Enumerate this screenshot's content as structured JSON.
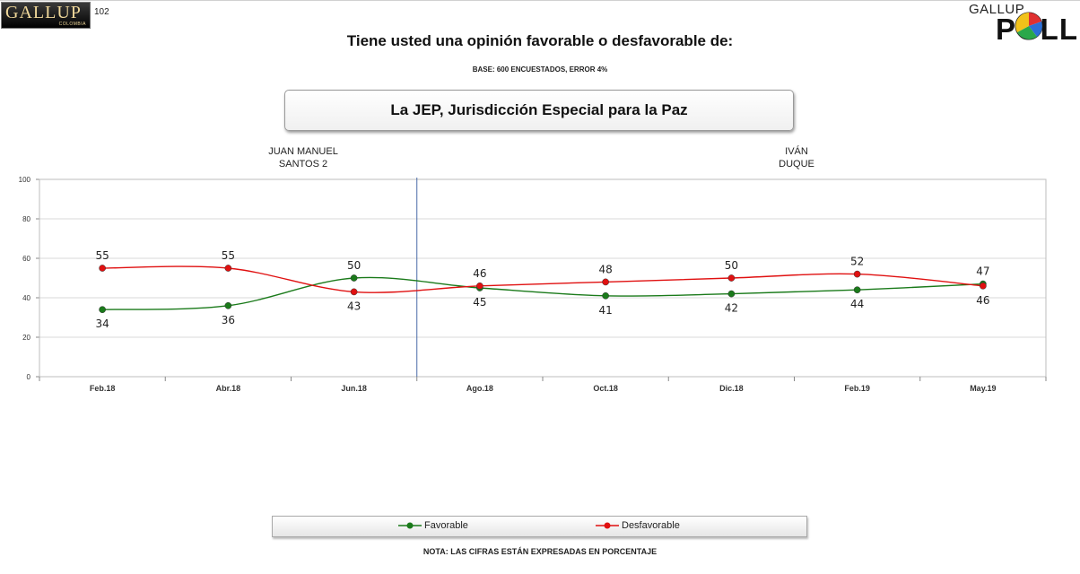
{
  "header": {
    "logo_left_text": "GALLUP",
    "logo_left_sub": "COLOMBIA",
    "page_number": "102",
    "logo_right_top": "GALLUP",
    "logo_right_bottom": "POLL"
  },
  "title": "Tiene usted una opinión favorable o desfavorable de:",
  "base": "BASE: 600 ENCUESTADOS, ERROR 4%",
  "subject": "La JEP, Jurisdicción Especial para la Paz",
  "periods": [
    {
      "label": "JUAN MANUEL SANTOS 2",
      "line1": "JUAN MANUEL",
      "line2": "SANTOS 2"
    },
    {
      "label": "IVÁN DUQUE",
      "line1": "IVÁN",
      "line2": "DUQUE"
    }
  ],
  "legend": {
    "favorable": "Favorable",
    "desfavorable": "Desfavorable"
  },
  "note": "NOTA: LAS CIFRAS ESTÁN EXPRESADAS EN PORCENTAJE",
  "chart_data": {
    "type": "line",
    "categories": [
      "Feb.18",
      "Abr.18",
      "Jun.18",
      "Ago.18",
      "Oct.18",
      "Dic.18",
      "Feb.19",
      "May.19"
    ],
    "series": [
      {
        "name": "Favorable",
        "color": "#1a7a1a",
        "values": [
          34,
          36,
          50,
          45,
          41,
          42,
          44,
          47
        ]
      },
      {
        "name": "Desfavorable",
        "color": "#e01010",
        "values": [
          55,
          55,
          43,
          46,
          48,
          50,
          52,
          46
        ]
      }
    ],
    "ylim": [
      0,
      100
    ],
    "yticks": [
      0,
      20,
      40,
      60,
      80,
      100
    ],
    "grid": true,
    "period_divider_after_category": 2,
    "legend_position": "bottom"
  }
}
